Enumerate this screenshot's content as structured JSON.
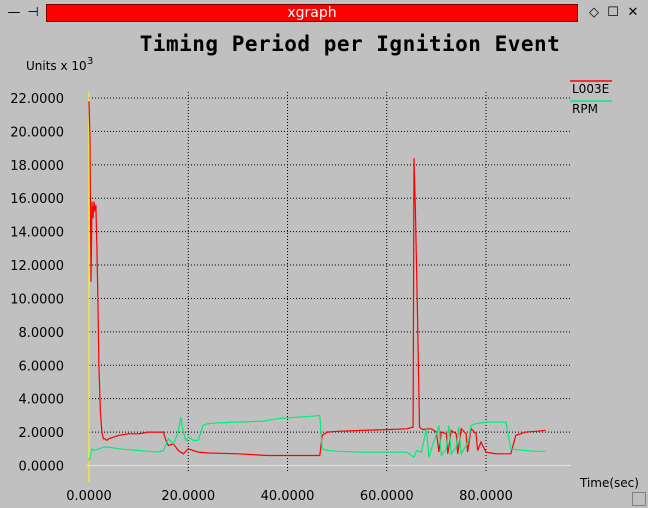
{
  "window": {
    "title": "xgraph",
    "menu_glyph": "—",
    "pin_glyph": "⊣",
    "minimize_glyph": "◇",
    "maximize_glyph": "☐",
    "close_glyph": "✕"
  },
  "colors": {
    "background": "#c0c0c0",
    "titlebar_accent": "#ff0000",
    "series_L003E": "#ff0000",
    "series_RPM": "#00ee77",
    "axes": "#ffff00",
    "grid": "#000000"
  },
  "chart_data": {
    "type": "line",
    "title": "Timing Period per Ignition Event",
    "ylabel": "Units x 10",
    "ylabel_exponent": "3",
    "xlabel": "Time(sec)",
    "xlim": [
      -1,
      94
    ],
    "ylim": [
      -0.3,
      23
    ],
    "x_ticks": [
      {
        "value": 0,
        "label": "0.0000"
      },
      {
        "value": 20,
        "label": "20.0000"
      },
      {
        "value": 40,
        "label": "40.0000"
      },
      {
        "value": 60,
        "label": "60.0000"
      },
      {
        "value": 80,
        "label": "80.0000"
      }
    ],
    "y_ticks": [
      {
        "value": 0,
        "label": "0.0000"
      },
      {
        "value": 2,
        "label": "2.0000"
      },
      {
        "value": 4,
        "label": "4.0000"
      },
      {
        "value": 6,
        "label": "6.0000"
      },
      {
        "value": 8,
        "label": "8.0000"
      },
      {
        "value": 10,
        "label": "10.0000"
      },
      {
        "value": 12,
        "label": "12.0000"
      },
      {
        "value": 14,
        "label": "14.0000"
      },
      {
        "value": 16,
        "label": "16.0000"
      },
      {
        "value": 18,
        "label": "18.0000"
      },
      {
        "value": 20,
        "label": "20.0000"
      },
      {
        "value": 22,
        "label": "22.0000"
      }
    ],
    "grid": true,
    "legend_position": "top-right",
    "series": [
      {
        "name": "L003E",
        "color": "#ff0000",
        "x": [
          0,
          0.2,
          0.4,
          0.6,
          0.8,
          1.0,
          1.2,
          1.4,
          1.6,
          1.8,
          2.0,
          2.3,
          2.6,
          2.9,
          3.2,
          3.6,
          4,
          5,
          6,
          8,
          10,
          12,
          14,
          15,
          15.5,
          16,
          17,
          18,
          19,
          20,
          21,
          22,
          24,
          30,
          36,
          40,
          44,
          46.5,
          47,
          48,
          50,
          55,
          60,
          64,
          65.3,
          65.5,
          65.8,
          66.2,
          66.6,
          67,
          67.5,
          68,
          69,
          70,
          70.5,
          71,
          72,
          72.3,
          73,
          74,
          74.3,
          75,
          76,
          76.3,
          77,
          78,
          78.3,
          79,
          80,
          81,
          82,
          84,
          85,
          86,
          88,
          90,
          92
        ],
        "y": [
          21.8,
          19.5,
          11.0,
          15.8,
          14.8,
          15.8,
          15.2,
          15.6,
          13.0,
          10.0,
          6.0,
          3.2,
          2.0,
          1.6,
          1.6,
          1.5,
          1.6,
          1.7,
          1.8,
          1.9,
          1.9,
          2.0,
          2.0,
          2.0,
          1.5,
          1.2,
          1.3,
          0.9,
          0.7,
          1.0,
          0.9,
          0.8,
          0.75,
          0.7,
          0.6,
          0.6,
          0.6,
          0.6,
          1.8,
          2.0,
          2.05,
          2.1,
          2.15,
          2.2,
          2.3,
          18.4,
          15.0,
          9.0,
          2.3,
          2.2,
          2.15,
          2.2,
          2.2,
          2.0,
          0.8,
          2.0,
          1.9,
          0.7,
          2.1,
          1.9,
          0.7,
          2.2,
          1.9,
          0.8,
          2.2,
          1.9,
          0.9,
          1.4,
          0.8,
          0.75,
          0.7,
          0.7,
          0.7,
          1.8,
          2.0,
          2.05,
          2.1
        ]
      },
      {
        "name": "RPM",
        "color": "#00ee77",
        "x": [
          0,
          0.3,
          0.6,
          1,
          2,
          3,
          4,
          6,
          8,
          10,
          12,
          14,
          15,
          16,
          17,
          18,
          18.5,
          19,
          19.5,
          20,
          21,
          22,
          23,
          24,
          26,
          30,
          35,
          38,
          40,
          45,
          46.5,
          47,
          48,
          50,
          55,
          60,
          64,
          65.5,
          66,
          67,
          68,
          68.5,
          69,
          70,
          70.5,
          71,
          72,
          72.5,
          73,
          74,
          74.5,
          75,
          76,
          76.5,
          77,
          78,
          79,
          80,
          82,
          84,
          85,
          86,
          88,
          90,
          92
        ],
        "y": [
          0.3,
          0.6,
          1.0,
          0.9,
          1.0,
          1.1,
          1.1,
          1.0,
          0.95,
          0.9,
          0.85,
          0.8,
          0.9,
          1.6,
          1.3,
          2.0,
          2.9,
          2.0,
          1.5,
          1.7,
          1.5,
          1.5,
          2.4,
          2.5,
          2.55,
          2.6,
          2.65,
          2.8,
          2.85,
          2.95,
          3.0,
          1.0,
          0.9,
          0.85,
          0.8,
          0.8,
          0.8,
          0.5,
          0.9,
          0.8,
          2.2,
          0.5,
          1.0,
          1.9,
          2.4,
          0.6,
          1.0,
          2.4,
          0.7,
          1.1,
          2.3,
          0.7,
          1.2,
          1.5,
          2.4,
          2.5,
          2.55,
          2.6,
          2.6,
          2.6,
          1.0,
          0.95,
          0.9,
          0.85,
          0.85
        ]
      }
    ]
  }
}
